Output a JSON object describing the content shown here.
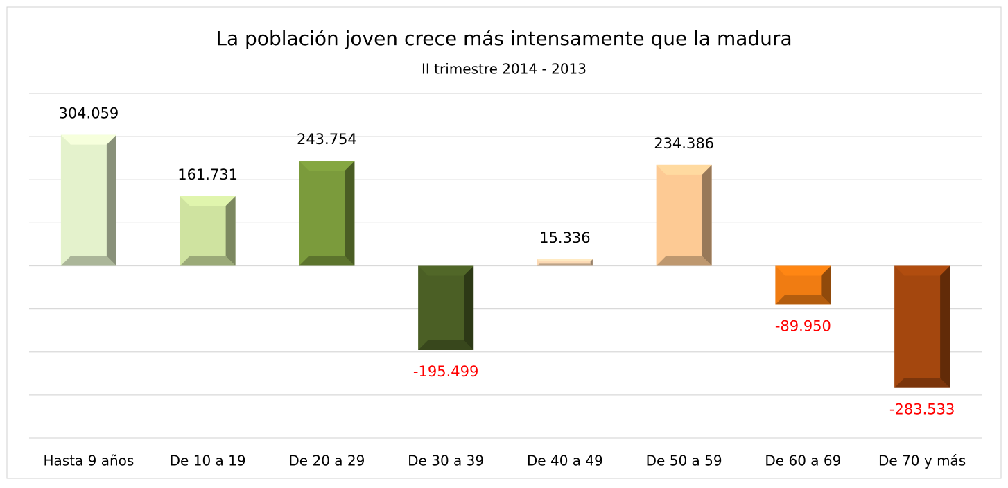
{
  "chart_data": {
    "type": "bar",
    "title": "La población joven crece más intensamente que la madura",
    "subtitle": "II trimestre 2014  - 2013",
    "categories": [
      "Hasta 9 años",
      "De 10 a 19",
      "De 20 a 29",
      "De 30 a 39",
      "De 40 a 49",
      "De 50 a 59",
      "De 60 a 69",
      "De 70 y más"
    ],
    "values": [
      304059,
      161731,
      243754,
      -195499,
      15336,
      234386,
      -89950,
      -283533
    ],
    "value_labels": [
      "304.059",
      "161.731",
      "243.754",
      "-195.499",
      "15.336",
      "234.386",
      "-89.950",
      "-283.533"
    ],
    "colors": [
      "#e4f2cc",
      "#cfe3a0",
      "#7b9b3c",
      "#4b5f25",
      "#fcd9b4",
      "#fdca94",
      "#f07c12",
      "#a4470e"
    ],
    "negative_label_color": "#ff0000",
    "ylim": [
      -400000,
      400000
    ],
    "yticks": [
      -400000,
      -300000,
      -200000,
      -100000,
      0,
      100000,
      200000,
      300000,
      400000
    ],
    "grid": true
  }
}
